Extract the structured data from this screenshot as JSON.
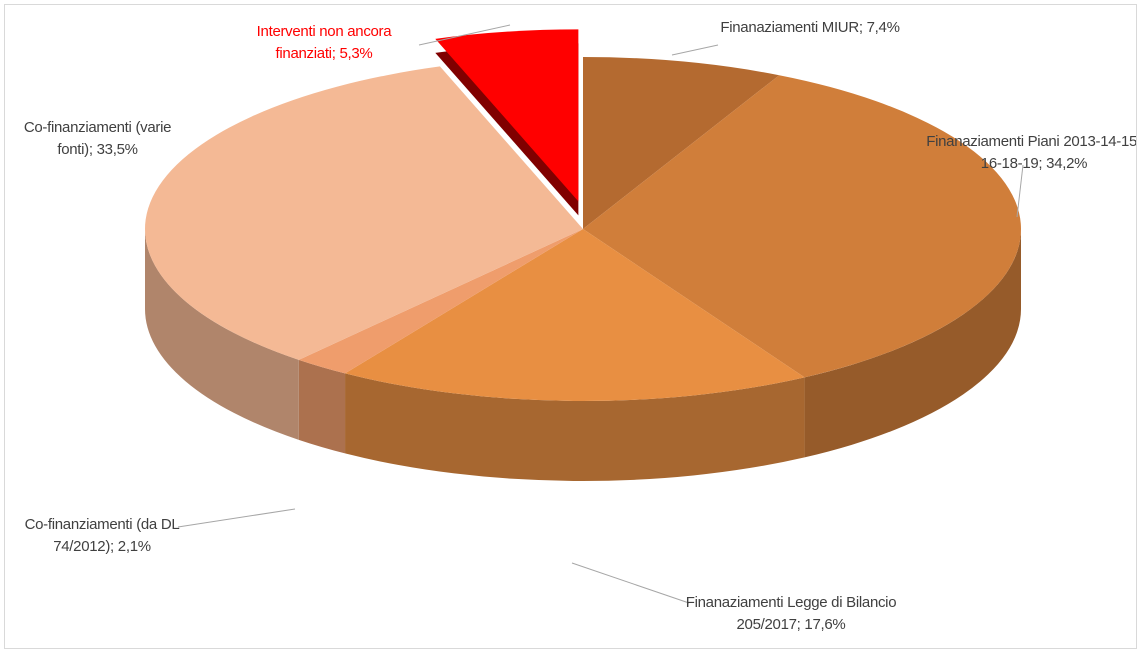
{
  "chart_data": {
    "type": "pie",
    "categories": [
      "Finanaziamenti MIUR;",
      "Finanaziamenti Piani 2013-14-15-16-18-19;",
      "Finanaziamenti Legge di Bilancio 205/2017;",
      "Co-finanziamenti (da DL 74/2012);",
      "Co-finanziamenti (varie fonti);",
      "Interventi non ancora finanziati;"
    ],
    "values": [
      7.4,
      34.2,
      17.6,
      2.1,
      33.5,
      5.3
    ],
    "value_labels": [
      "7,4%",
      "34,2%",
      "17,6%",
      "2,1%",
      "33,5%",
      "5,3%"
    ],
    "colors": [
      "#b46a30",
      "#d07e3a",
      "#e88f42",
      "#ef9d6c",
      "#f4b995",
      "#ff0000"
    ]
  }
}
